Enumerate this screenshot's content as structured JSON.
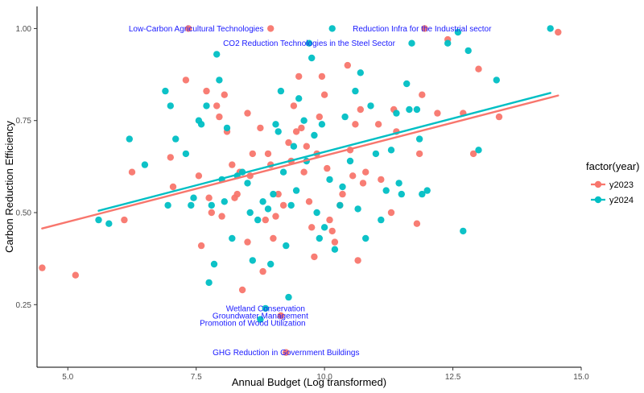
{
  "chart_data": {
    "type": "scatter",
    "title": "",
    "xlabel": "Annual Budget (Log transformed)",
    "ylabel": "Carbon Reduction Efficiency",
    "xlim": [
      4.4,
      15.0
    ],
    "ylim": [
      0.08,
      1.06
    ],
    "x_ticks": [
      5.0,
      7.5,
      10.0,
      12.5,
      15.0
    ],
    "x_tick_labels": [
      "5.0",
      "7.5",
      "10.0",
      "12.5",
      "15.0"
    ],
    "y_ticks": [
      0.25,
      0.5,
      0.75,
      1.0
    ],
    "y_tick_labels": [
      "0.25",
      "0.50",
      "0.75",
      "1.00"
    ],
    "grid": false,
    "legend": {
      "title": "factor(year)",
      "placement": "right",
      "entries": [
        "y2023",
        "y2024"
      ]
    },
    "series": [
      {
        "name": "y2023",
        "color": "#F8766D",
        "points": [
          [
            4.5,
            0.35
          ],
          [
            5.15,
            0.33
          ],
          [
            6.1,
            0.48
          ],
          [
            6.25,
            0.61
          ],
          [
            7.0,
            0.65
          ],
          [
            7.05,
            0.57
          ],
          [
            7.3,
            0.86
          ],
          [
            7.35,
            1.0
          ],
          [
            7.55,
            0.6
          ],
          [
            7.6,
            0.41
          ],
          [
            7.7,
            0.83
          ],
          [
            7.75,
            0.54
          ],
          [
            7.8,
            0.5
          ],
          [
            7.9,
            0.79
          ],
          [
            7.95,
            0.76
          ],
          [
            8.0,
            0.49
          ],
          [
            8.05,
            0.82
          ],
          [
            8.1,
            0.72
          ],
          [
            8.2,
            0.63
          ],
          [
            8.25,
            0.54
          ],
          [
            8.3,
            0.55
          ],
          [
            8.35,
            0.61
          ],
          [
            8.4,
            0.29
          ],
          [
            8.5,
            0.77
          ],
          [
            8.5,
            0.42
          ],
          [
            8.55,
            0.6
          ],
          [
            8.6,
            0.66
          ],
          [
            8.75,
            0.73
          ],
          [
            8.8,
            0.34
          ],
          [
            8.85,
            0.48
          ],
          [
            8.9,
            0.66
          ],
          [
            8.95,
            0.63
          ],
          [
            8.95,
            1.0
          ],
          [
            9.0,
            0.43
          ],
          [
            9.05,
            0.49
          ],
          [
            9.1,
            0.55
          ],
          [
            9.15,
            0.22
          ],
          [
            9.2,
            0.52
          ],
          [
            9.25,
            0.12
          ],
          [
            9.3,
            0.69
          ],
          [
            9.35,
            0.64
          ],
          [
            9.4,
            0.79
          ],
          [
            9.45,
            0.72
          ],
          [
            9.5,
            0.87
          ],
          [
            9.55,
            0.73
          ],
          [
            9.6,
            0.61
          ],
          [
            9.65,
            0.68
          ],
          [
            9.7,
            0.53
          ],
          [
            9.75,
            0.46
          ],
          [
            9.8,
            0.38
          ],
          [
            9.85,
            0.66
          ],
          [
            9.9,
            0.76
          ],
          [
            9.95,
            0.87
          ],
          [
            10.0,
            0.82
          ],
          [
            10.05,
            0.62
          ],
          [
            10.1,
            0.48
          ],
          [
            10.15,
            0.45
          ],
          [
            10.2,
            0.42
          ],
          [
            10.3,
            0.52
          ],
          [
            10.35,
            0.55
          ],
          [
            10.45,
            0.9
          ],
          [
            10.5,
            0.67
          ],
          [
            10.55,
            0.6
          ],
          [
            10.6,
            0.74
          ],
          [
            10.65,
            0.37
          ],
          [
            10.7,
            0.78
          ],
          [
            10.75,
            0.58
          ],
          [
            10.8,
            0.61
          ],
          [
            11.05,
            0.74
          ],
          [
            11.1,
            0.59
          ],
          [
            11.3,
            0.5
          ],
          [
            11.35,
            0.78
          ],
          [
            11.4,
            0.72
          ],
          [
            11.8,
            0.47
          ],
          [
            11.85,
            0.66
          ],
          [
            11.9,
            0.82
          ],
          [
            11.95,
            1.0
          ],
          [
            12.2,
            0.77
          ],
          [
            12.4,
            0.97
          ],
          [
            12.7,
            0.77
          ],
          [
            12.9,
            0.66
          ],
          [
            13.0,
            0.89
          ],
          [
            13.4,
            0.76
          ],
          [
            14.55,
            0.99
          ]
        ]
      },
      {
        "name": "y2024",
        "color": "#00BFC4",
        "points": [
          [
            5.6,
            0.48
          ],
          [
            5.8,
            0.47
          ],
          [
            6.2,
            0.7
          ],
          [
            6.5,
            0.63
          ],
          [
            6.9,
            0.83
          ],
          [
            6.95,
            0.52
          ],
          [
            7.0,
            0.79
          ],
          [
            7.1,
            0.7
          ],
          [
            7.3,
            0.66
          ],
          [
            7.4,
            0.52
          ],
          [
            7.45,
            0.54
          ],
          [
            7.55,
            0.75
          ],
          [
            7.6,
            0.74
          ],
          [
            7.7,
            0.79
          ],
          [
            7.75,
            0.31
          ],
          [
            7.8,
            0.52
          ],
          [
            7.85,
            0.36
          ],
          [
            7.9,
            0.93
          ],
          [
            7.95,
            0.86
          ],
          [
            8.0,
            0.59
          ],
          [
            8.05,
            0.53
          ],
          [
            8.1,
            0.73
          ],
          [
            8.2,
            0.43
          ],
          [
            8.3,
            0.6
          ],
          [
            8.4,
            0.61
          ],
          [
            8.5,
            0.58
          ],
          [
            8.55,
            0.5
          ],
          [
            8.6,
            0.37
          ],
          [
            8.7,
            0.48
          ],
          [
            8.75,
            0.21
          ],
          [
            8.8,
            0.53
          ],
          [
            8.85,
            0.24
          ],
          [
            8.9,
            0.51
          ],
          [
            8.95,
            0.36
          ],
          [
            9.0,
            0.55
          ],
          [
            9.05,
            0.74
          ],
          [
            9.1,
            0.72
          ],
          [
            9.15,
            0.83
          ],
          [
            9.2,
            0.61
          ],
          [
            9.25,
            0.41
          ],
          [
            9.3,
            0.27
          ],
          [
            9.35,
            0.52
          ],
          [
            9.4,
            0.68
          ],
          [
            9.45,
            0.56
          ],
          [
            9.5,
            0.81
          ],
          [
            9.6,
            0.75
          ],
          [
            9.65,
            0.64
          ],
          [
            9.7,
            0.96
          ],
          [
            9.75,
            0.92
          ],
          [
            9.8,
            0.71
          ],
          [
            9.85,
            0.5
          ],
          [
            9.9,
            0.43
          ],
          [
            9.95,
            0.74
          ],
          [
            10.0,
            0.46
          ],
          [
            10.1,
            0.59
          ],
          [
            10.15,
            1.0
          ],
          [
            10.2,
            0.4
          ],
          [
            10.3,
            0.52
          ],
          [
            10.35,
            0.57
          ],
          [
            10.4,
            0.76
          ],
          [
            10.5,
            0.64
          ],
          [
            10.6,
            0.83
          ],
          [
            10.65,
            0.51
          ],
          [
            10.7,
            0.88
          ],
          [
            10.8,
            0.43
          ],
          [
            10.9,
            0.79
          ],
          [
            11.0,
            0.66
          ],
          [
            11.1,
            0.48
          ],
          [
            11.2,
            0.56
          ],
          [
            11.3,
            0.67
          ],
          [
            11.4,
            0.77
          ],
          [
            11.45,
            0.58
          ],
          [
            11.5,
            0.55
          ],
          [
            11.6,
            0.85
          ],
          [
            11.65,
            0.78
          ],
          [
            11.7,
            0.96
          ],
          [
            11.8,
            0.78
          ],
          [
            11.85,
            0.7
          ],
          [
            11.9,
            0.55
          ],
          [
            12.0,
            0.56
          ],
          [
            12.4,
            0.96
          ],
          [
            12.6,
            0.99
          ],
          [
            12.7,
            0.45
          ],
          [
            12.8,
            0.94
          ],
          [
            13.0,
            0.67
          ],
          [
            13.35,
            0.86
          ],
          [
            14.4,
            1.0
          ]
        ]
      }
    ],
    "trend_lines": [
      {
        "series": "y2023",
        "color": "#F8766D",
        "x": [
          4.5,
          14.55
        ],
        "y": [
          0.457,
          0.818
        ]
      },
      {
        "series": "y2024",
        "color": "#00BFC4",
        "x": [
          5.6,
          14.4
        ],
        "y": [
          0.505,
          0.825
        ]
      }
    ],
    "annotations": [
      {
        "text": "Low-Carbon Agricultural Technologies",
        "x": 7.5,
        "y": 1.0
      },
      {
        "text": "Reduction Infra for the Industrial sector",
        "x": 11.9,
        "y": 1.0
      },
      {
        "text": "CO2 Reduction Technologies in the Steel Sector",
        "x": 9.7,
        "y": 0.96
      },
      {
        "text": "Wetland Conservation",
        "x": 8.85,
        "y": 0.24
      },
      {
        "text": "Groundwater Management",
        "x": 8.75,
        "y": 0.22
      },
      {
        "text": "Promotion of Wood Utilization",
        "x": 8.6,
        "y": 0.2
      },
      {
        "text": "GHG Reduction in Government Buildings",
        "x": 9.25,
        "y": 0.12
      }
    ]
  }
}
